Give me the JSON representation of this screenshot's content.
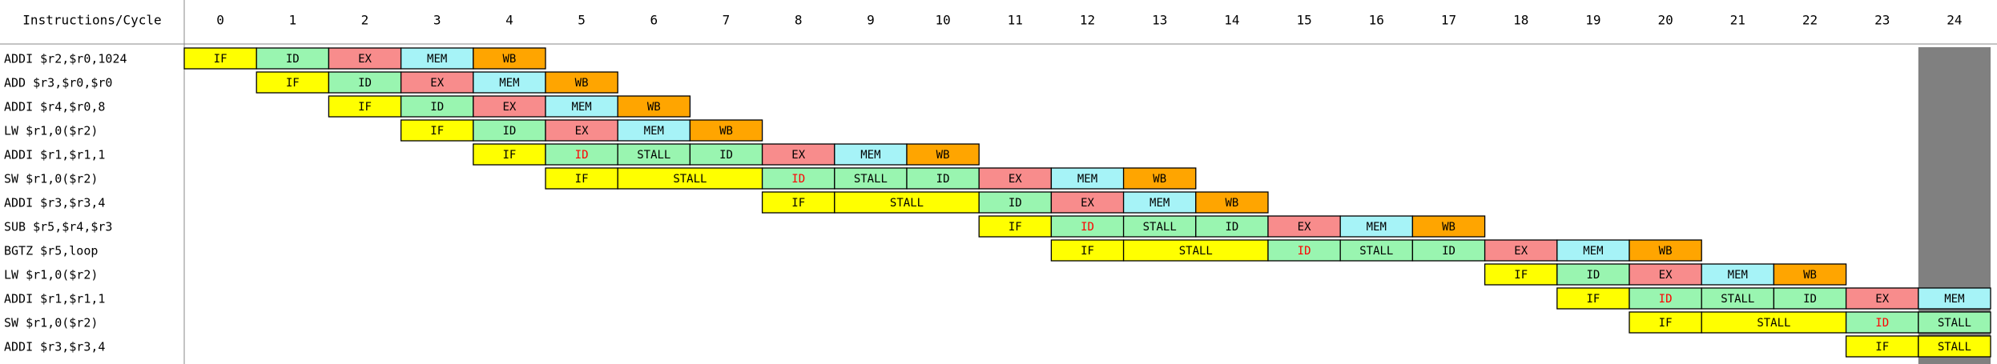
{
  "header": {
    "corner_label": "Instructions/Cycle",
    "cycles": [
      "0",
      "1",
      "2",
      "3",
      "4",
      "5",
      "6",
      "7",
      "8",
      "9",
      "10",
      "11",
      "12",
      "13",
      "14",
      "15",
      "16",
      "17",
      "18",
      "19",
      "20",
      "21",
      "22",
      "23",
      "24"
    ]
  },
  "colors": {
    "IF": "#ffff00",
    "ID": "#99f5b0",
    "STALL": "#99f5b0",
    "EX": "#f88c8c",
    "MEM": "#a6f3f7",
    "WB": "#ffa500",
    "highlight_text": "#ff0000",
    "current_cycle_shade": "#808080"
  },
  "current_cycle": 24,
  "instructions": [
    {
      "label": "ADDI $r2,$r0,1024",
      "stages": [
        {
          "c": 0,
          "span": 1,
          "t": "IF"
        },
        {
          "c": 1,
          "span": 1,
          "t": "ID"
        },
        {
          "c": 2,
          "span": 1,
          "t": "EX"
        },
        {
          "c": 3,
          "span": 1,
          "t": "MEM"
        },
        {
          "c": 4,
          "span": 1,
          "t": "WB"
        }
      ]
    },
    {
      "label": "ADD $r3,$r0,$r0",
      "stages": [
        {
          "c": 1,
          "span": 1,
          "t": "IF"
        },
        {
          "c": 2,
          "span": 1,
          "t": "ID"
        },
        {
          "c": 3,
          "span": 1,
          "t": "EX"
        },
        {
          "c": 4,
          "span": 1,
          "t": "MEM"
        },
        {
          "c": 5,
          "span": 1,
          "t": "WB"
        }
      ]
    },
    {
      "label": "ADDI $r4,$r0,8",
      "stages": [
        {
          "c": 2,
          "span": 1,
          "t": "IF"
        },
        {
          "c": 3,
          "span": 1,
          "t": "ID"
        },
        {
          "c": 4,
          "span": 1,
          "t": "EX"
        },
        {
          "c": 5,
          "span": 1,
          "t": "MEM"
        },
        {
          "c": 6,
          "span": 1,
          "t": "WB"
        }
      ]
    },
    {
      "label": "LW $r1,0($r2)",
      "stages": [
        {
          "c": 3,
          "span": 1,
          "t": "IF"
        },
        {
          "c": 4,
          "span": 1,
          "t": "ID"
        },
        {
          "c": 5,
          "span": 1,
          "t": "EX"
        },
        {
          "c": 6,
          "span": 1,
          "t": "MEM"
        },
        {
          "c": 7,
          "span": 1,
          "t": "WB"
        }
      ]
    },
    {
      "label": "ADDI $r1,$r1,1",
      "stages": [
        {
          "c": 4,
          "span": 1,
          "t": "IF"
        },
        {
          "c": 5,
          "span": 1,
          "t": "ID",
          "red": true
        },
        {
          "c": 6,
          "span": 1,
          "t": "STALL"
        },
        {
          "c": 7,
          "span": 1,
          "t": "ID"
        },
        {
          "c": 8,
          "span": 1,
          "t": "EX"
        },
        {
          "c": 9,
          "span": 1,
          "t": "MEM"
        },
        {
          "c": 10,
          "span": 1,
          "t": "WB"
        }
      ]
    },
    {
      "label": "SW $r1,0($r2)",
      "stages": [
        {
          "c": 5,
          "span": 1,
          "t": "IF"
        },
        {
          "c": 6,
          "span": 2,
          "t": "STALL",
          "k": "IF"
        },
        {
          "c": 8,
          "span": 1,
          "t": "ID",
          "red": true
        },
        {
          "c": 9,
          "span": 1,
          "t": "STALL"
        },
        {
          "c": 10,
          "span": 1,
          "t": "ID"
        },
        {
          "c": 11,
          "span": 1,
          "t": "EX"
        },
        {
          "c": 12,
          "span": 1,
          "t": "MEM"
        },
        {
          "c": 13,
          "span": 1,
          "t": "WB"
        }
      ]
    },
    {
      "label": "ADDI $r3,$r3,4",
      "stages": [
        {
          "c": 8,
          "span": 1,
          "t": "IF"
        },
        {
          "c": 9,
          "span": 2,
          "t": "STALL",
          "k": "IF"
        },
        {
          "c": 11,
          "span": 1,
          "t": "ID"
        },
        {
          "c": 12,
          "span": 1,
          "t": "EX"
        },
        {
          "c": 13,
          "span": 1,
          "t": "MEM"
        },
        {
          "c": 14,
          "span": 1,
          "t": "WB"
        }
      ]
    },
    {
      "label": "SUB $r5,$r4,$r3",
      "stages": [
        {
          "c": 11,
          "span": 1,
          "t": "IF"
        },
        {
          "c": 12,
          "span": 1,
          "t": "ID",
          "red": true
        },
        {
          "c": 13,
          "span": 1,
          "t": "STALL"
        },
        {
          "c": 14,
          "span": 1,
          "t": "ID"
        },
        {
          "c": 15,
          "span": 1,
          "t": "EX"
        },
        {
          "c": 16,
          "span": 1,
          "t": "MEM"
        },
        {
          "c": 17,
          "span": 1,
          "t": "WB"
        }
      ]
    },
    {
      "label": "BGTZ $r5,loop",
      "stages": [
        {
          "c": 12,
          "span": 1,
          "t": "IF"
        },
        {
          "c": 13,
          "span": 2,
          "t": "STALL",
          "k": "IF"
        },
        {
          "c": 15,
          "span": 1,
          "t": "ID",
          "red": true
        },
        {
          "c": 16,
          "span": 1,
          "t": "STALL"
        },
        {
          "c": 17,
          "span": 1,
          "t": "ID"
        },
        {
          "c": 18,
          "span": 1,
          "t": "EX"
        },
        {
          "c": 19,
          "span": 1,
          "t": "MEM"
        },
        {
          "c": 20,
          "span": 1,
          "t": "WB"
        }
      ]
    },
    {
      "label": "LW $r1,0($r2)",
      "stages": [
        {
          "c": 18,
          "span": 1,
          "t": "IF"
        },
        {
          "c": 19,
          "span": 1,
          "t": "ID"
        },
        {
          "c": 20,
          "span": 1,
          "t": "EX"
        },
        {
          "c": 21,
          "span": 1,
          "t": "MEM"
        },
        {
          "c": 22,
          "span": 1,
          "t": "WB"
        }
      ]
    },
    {
      "label": "ADDI $r1,$r1,1",
      "stages": [
        {
          "c": 19,
          "span": 1,
          "t": "IF"
        },
        {
          "c": 20,
          "span": 1,
          "t": "ID",
          "red": true
        },
        {
          "c": 21,
          "span": 1,
          "t": "STALL"
        },
        {
          "c": 22,
          "span": 1,
          "t": "ID"
        },
        {
          "c": 23,
          "span": 1,
          "t": "EX"
        },
        {
          "c": 24,
          "span": 1,
          "t": "MEM"
        }
      ]
    },
    {
      "label": "SW $r1,0($r2)",
      "stages": [
        {
          "c": 20,
          "span": 1,
          "t": "IF"
        },
        {
          "c": 21,
          "span": 2,
          "t": "STALL",
          "k": "IF"
        },
        {
          "c": 23,
          "span": 1,
          "t": "ID",
          "red": true
        },
        {
          "c": 24,
          "span": 1,
          "t": "STALL"
        }
      ]
    },
    {
      "label": "ADDI $r3,$r3,4",
      "stages": [
        {
          "c": 23,
          "span": 1,
          "t": "IF"
        },
        {
          "c": 24,
          "span": 1,
          "t": "STALL",
          "k": "IF"
        }
      ]
    }
  ]
}
